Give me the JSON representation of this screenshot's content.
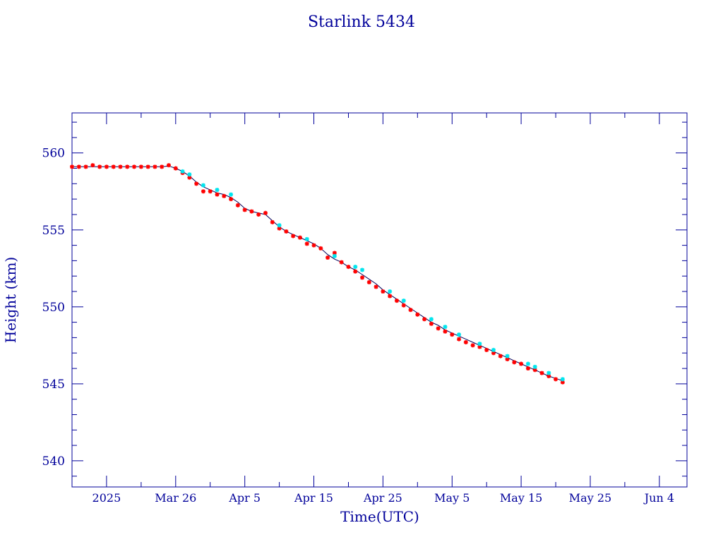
{
  "chart_data": {
    "type": "scatter",
    "title": "Starlink 5434",
    "xlabel": "Time(UTC)",
    "ylabel": "Height (km)",
    "xlim": [
      "2025-03-11",
      "2025-06-08"
    ],
    "ylim": [
      538.3,
      562.6
    ],
    "grid": false,
    "legend": "none",
    "x_ticks": [
      {
        "date": "2025-03-16",
        "label": "2025"
      },
      {
        "date": "2025-03-26",
        "label": "Mar 26"
      },
      {
        "date": "2025-04-05",
        "label": "Apr  5"
      },
      {
        "date": "2025-04-15",
        "label": "Apr 15"
      },
      {
        "date": "2025-04-25",
        "label": "Apr 25"
      },
      {
        "date": "2025-05-05",
        "label": "May  5"
      },
      {
        "date": "2025-05-15",
        "label": "May 15"
      },
      {
        "date": "2025-05-25",
        "label": "May 25"
      },
      {
        "date": "2025-06-04",
        "label": "Jun  4"
      }
    ],
    "y_ticks": [
      540,
      545,
      550,
      555,
      560
    ],
    "colors": {
      "frame": "#00009a",
      "text": "#00009a",
      "line": "#00005a",
      "series_primary": "#ff0000",
      "series_secondary": "#00e5ee"
    },
    "line_points": [
      [
        "2025-03-11",
        559.1
      ],
      [
        "2025-03-15",
        559.1
      ],
      [
        "2025-03-20",
        559.1
      ],
      [
        "2025-03-24",
        559.1
      ],
      [
        "2025-03-25",
        559.15
      ],
      [
        "2025-03-26",
        559.0
      ],
      [
        "2025-03-27",
        558.8
      ],
      [
        "2025-03-28",
        558.5
      ],
      [
        "2025-03-29",
        558.1
      ],
      [
        "2025-03-30",
        557.8
      ],
      [
        "2025-03-31",
        557.6
      ],
      [
        "2025-04-01",
        557.4
      ],
      [
        "2025-04-02",
        557.3
      ],
      [
        "2025-04-03",
        557.1
      ],
      [
        "2025-04-04",
        556.8
      ],
      [
        "2025-04-05",
        556.4
      ],
      [
        "2025-04-06",
        556.2
      ],
      [
        "2025-04-07",
        556.1
      ],
      [
        "2025-04-08",
        556.0
      ],
      [
        "2025-04-09",
        555.6
      ],
      [
        "2025-04-10",
        555.2
      ],
      [
        "2025-04-11",
        554.9
      ],
      [
        "2025-04-12",
        554.7
      ],
      [
        "2025-04-13",
        554.5
      ],
      [
        "2025-04-14",
        554.3
      ],
      [
        "2025-04-15",
        554.1
      ],
      [
        "2025-04-16",
        553.8
      ],
      [
        "2025-04-17",
        553.4
      ],
      [
        "2025-04-18",
        553.1
      ],
      [
        "2025-04-19",
        552.9
      ],
      [
        "2025-04-20",
        552.6
      ],
      [
        "2025-04-21",
        552.4
      ],
      [
        "2025-04-22",
        552.1
      ],
      [
        "2025-04-23",
        551.8
      ],
      [
        "2025-04-24",
        551.5
      ],
      [
        "2025-04-25",
        551.1
      ],
      [
        "2025-04-26",
        550.8
      ],
      [
        "2025-04-27",
        550.5
      ],
      [
        "2025-04-28",
        550.2
      ],
      [
        "2025-04-29",
        549.9
      ],
      [
        "2025-04-30",
        549.6
      ],
      [
        "2025-05-01",
        549.3
      ],
      [
        "2025-05-02",
        549.0
      ],
      [
        "2025-05-03",
        548.8
      ],
      [
        "2025-05-04",
        548.5
      ],
      [
        "2025-05-05",
        548.3
      ],
      [
        "2025-05-06",
        548.1
      ],
      [
        "2025-05-07",
        547.9
      ],
      [
        "2025-05-08",
        547.7
      ],
      [
        "2025-05-09",
        547.5
      ],
      [
        "2025-05-10",
        547.3
      ],
      [
        "2025-05-11",
        547.1
      ],
      [
        "2025-05-12",
        546.9
      ],
      [
        "2025-05-13",
        546.7
      ],
      [
        "2025-05-14",
        546.5
      ],
      [
        "2025-05-15",
        546.3
      ],
      [
        "2025-05-16",
        546.1
      ],
      [
        "2025-05-17",
        545.9
      ],
      [
        "2025-05-18",
        545.7
      ],
      [
        "2025-05-19",
        545.5
      ],
      [
        "2025-05-20",
        545.35
      ],
      [
        "2025-05-21",
        545.2
      ]
    ],
    "series": [
      {
        "color": "#ff0000",
        "points": [
          [
            "2025-03-11",
            559.1
          ],
          [
            "2025-03-12",
            559.1
          ],
          [
            "2025-03-13",
            559.1
          ],
          [
            "2025-03-14",
            559.2
          ],
          [
            "2025-03-15",
            559.1
          ],
          [
            "2025-03-16",
            559.1
          ],
          [
            "2025-03-17",
            559.1
          ],
          [
            "2025-03-18",
            559.1
          ],
          [
            "2025-03-19",
            559.1
          ],
          [
            "2025-03-20",
            559.1
          ],
          [
            "2025-03-21",
            559.1
          ],
          [
            "2025-03-22",
            559.1
          ],
          [
            "2025-03-23",
            559.1
          ],
          [
            "2025-03-24",
            559.1
          ],
          [
            "2025-03-25",
            559.2
          ],
          [
            "2025-03-26",
            559.0
          ],
          [
            "2025-03-27",
            558.7
          ],
          [
            "2025-03-28",
            558.4
          ],
          [
            "2025-03-29",
            558.0
          ],
          [
            "2025-03-30",
            557.5
          ],
          [
            "2025-03-31",
            557.5
          ],
          [
            "2025-04-01",
            557.3
          ],
          [
            "2025-04-02",
            557.2
          ],
          [
            "2025-04-03",
            557.0
          ],
          [
            "2025-04-04",
            556.6
          ],
          [
            "2025-04-05",
            556.3
          ],
          [
            "2025-04-06",
            556.2
          ],
          [
            "2025-04-07",
            556.0
          ],
          [
            "2025-04-08",
            556.1
          ],
          [
            "2025-04-09",
            555.5
          ],
          [
            "2025-04-10",
            555.1
          ],
          [
            "2025-04-11",
            554.9
          ],
          [
            "2025-04-12",
            554.6
          ],
          [
            "2025-04-13",
            554.5
          ],
          [
            "2025-04-14",
            554.1
          ],
          [
            "2025-04-15",
            554.0
          ],
          [
            "2025-04-16",
            553.8
          ],
          [
            "2025-04-17",
            553.2
          ],
          [
            "2025-04-18",
            553.5
          ],
          [
            "2025-04-19",
            552.9
          ],
          [
            "2025-04-20",
            552.6
          ],
          [
            "2025-04-21",
            552.3
          ],
          [
            "2025-04-22",
            551.9
          ],
          [
            "2025-04-23",
            551.6
          ],
          [
            "2025-04-24",
            551.3
          ],
          [
            "2025-04-25",
            551.0
          ],
          [
            "2025-04-26",
            550.7
          ],
          [
            "2025-04-27",
            550.4
          ],
          [
            "2025-04-28",
            550.1
          ],
          [
            "2025-04-29",
            549.8
          ],
          [
            "2025-04-30",
            549.5
          ],
          [
            "2025-05-01",
            549.2
          ],
          [
            "2025-05-02",
            548.9
          ],
          [
            "2025-05-03",
            548.6
          ],
          [
            "2025-05-04",
            548.4
          ],
          [
            "2025-05-05",
            548.2
          ],
          [
            "2025-05-06",
            547.9
          ],
          [
            "2025-05-07",
            547.7
          ],
          [
            "2025-05-08",
            547.5
          ],
          [
            "2025-05-09",
            547.4
          ],
          [
            "2025-05-10",
            547.2
          ],
          [
            "2025-05-11",
            547.0
          ],
          [
            "2025-05-12",
            546.8
          ],
          [
            "2025-05-13",
            546.6
          ],
          [
            "2025-05-14",
            546.4
          ],
          [
            "2025-05-15",
            546.3
          ],
          [
            "2025-05-16",
            546.0
          ],
          [
            "2025-05-17",
            545.9
          ],
          [
            "2025-05-18",
            545.7
          ],
          [
            "2025-05-19",
            545.5
          ],
          [
            "2025-05-20",
            545.3
          ],
          [
            "2025-05-21",
            545.1
          ]
        ]
      },
      {
        "color": "#00e5ee",
        "points": [
          [
            "2025-03-27",
            558.8
          ],
          [
            "2025-03-28",
            558.6
          ],
          [
            "2025-03-30",
            557.9
          ],
          [
            "2025-04-01",
            557.6
          ],
          [
            "2025-04-03",
            557.3
          ],
          [
            "2025-04-10",
            555.3
          ],
          [
            "2025-04-14",
            554.4
          ],
          [
            "2025-04-18",
            553.3
          ],
          [
            "2025-04-21",
            552.6
          ],
          [
            "2025-04-22",
            552.4
          ],
          [
            "2025-04-26",
            551.0
          ],
          [
            "2025-04-28",
            550.4
          ],
          [
            "2025-05-02",
            549.2
          ],
          [
            "2025-05-04",
            548.7
          ],
          [
            "2025-05-06",
            548.2
          ],
          [
            "2025-05-09",
            547.6
          ],
          [
            "2025-05-11",
            547.2
          ],
          [
            "2025-05-13",
            546.8
          ],
          [
            "2025-05-16",
            546.3
          ],
          [
            "2025-05-17",
            546.1
          ],
          [
            "2025-05-19",
            545.7
          ],
          [
            "2025-05-21",
            545.3
          ]
        ]
      }
    ]
  }
}
